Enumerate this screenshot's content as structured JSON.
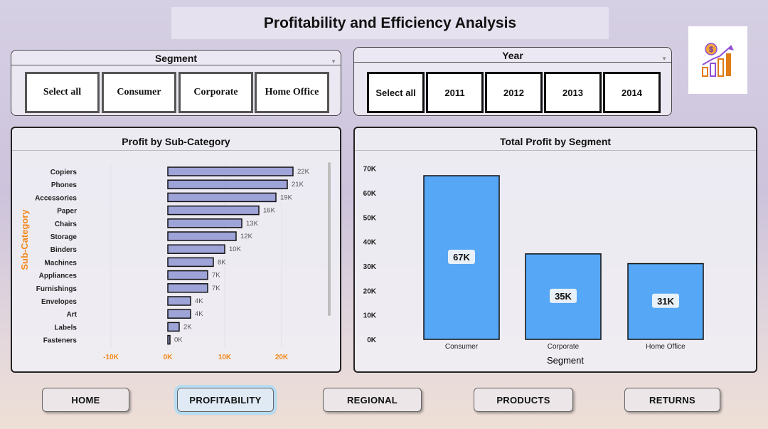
{
  "title": "Profitability and Efficiency Analysis",
  "logo": {
    "icon": "profit-growth-icon",
    "symbol": "$"
  },
  "segment_slicer": {
    "title": "Segment",
    "options": [
      "Select all",
      "Consumer",
      "Corporate",
      "Home Office"
    ]
  },
  "year_slicer": {
    "title": "Year",
    "options": [
      "Select all",
      "2011",
      "2012",
      "2013",
      "2014"
    ]
  },
  "subcategory_chart": {
    "title": "Profit by Sub-Category",
    "ylabel": "Sub-Category",
    "x_ticks": [
      "-10K",
      "0K",
      "10K",
      "20K"
    ],
    "bar_color": "#9ea3d8",
    "axis_color": "#f28a1c"
  },
  "segment_chart": {
    "title": "Total Profit by Segment",
    "xlabel": "Segment",
    "y_ticks": [
      "0K",
      "10K",
      "20K",
      "30K",
      "40K",
      "50K",
      "60K",
      "70K"
    ],
    "bar_color": "#56a7f5"
  },
  "chart_data": [
    {
      "type": "bar",
      "orientation": "horizontal",
      "title": "Profit by Sub-Category",
      "ylabel": "Sub-Category",
      "xlim": [
        -10,
        25
      ],
      "categories": [
        "Copiers",
        "Phones",
        "Accessories",
        "Paper",
        "Chairs",
        "Storage",
        "Binders",
        "Machines",
        "Appliances",
        "Furnishings",
        "Envelopes",
        "Art",
        "Labels",
        "Fasteners"
      ],
      "values": [
        22,
        21,
        19,
        16,
        13,
        12,
        10,
        8,
        7,
        7,
        4,
        4,
        2,
        0
      ],
      "labels": [
        "22K",
        "21K",
        "19K",
        "16K",
        "13K",
        "12K",
        "10K",
        "8K",
        "7K",
        "7K",
        "4K",
        "4K",
        "2K",
        "0K"
      ]
    },
    {
      "type": "bar",
      "title": "Total Profit by Segment",
      "xlabel": "Segment",
      "ylim": [
        0,
        70
      ],
      "categories": [
        "Consumer",
        "Corporate",
        "Home Office"
      ],
      "values": [
        67,
        35,
        31
      ],
      "labels": [
        "67K",
        "35K",
        "31K"
      ]
    }
  ],
  "nav": {
    "home": "HOME",
    "profitability": "PROFITABILITY",
    "regional": "REGIONAL",
    "products": "PRODUCTS",
    "returns": "RETURNS"
  }
}
